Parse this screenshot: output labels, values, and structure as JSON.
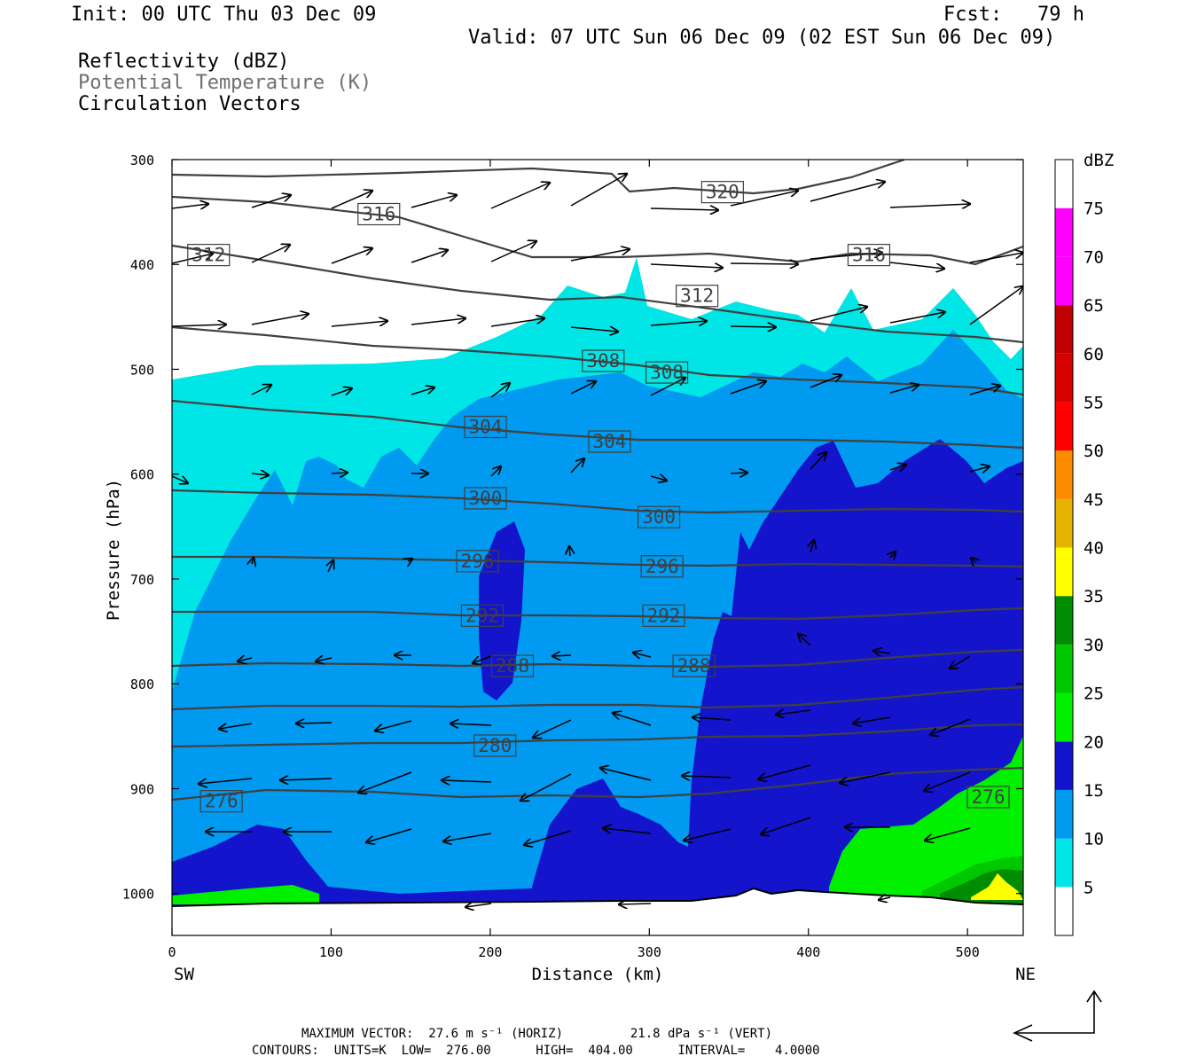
{
  "header": {
    "init": "Init: 00 UTC Thu 03 Dec 09",
    "fcst": "Fcst:   79 h",
    "valid": "Valid: 07 UTC Sun 06 Dec 09 (02 EST Sun 06 Dec 09)",
    "field1": "Reflectivity (dBZ)",
    "field2": "Potential Temperature (K)",
    "field3": "Circulation Vectors"
  },
  "footer": {
    "max_vector": "MAXIMUM VECTOR:  27.6 m s⁻¹ (HORIZ)         21.8 dPa s⁻¹ (VERT)",
    "contours": "CONTOURS:  UNITS=K  LOW=  276.00      HIGH=  404.00      INTERVAL=    4.0000"
  },
  "colors": {
    "c5": "#00e6e6",
    "c10": "#009af0",
    "c15": "#1414cc",
    "c20": "#00f000",
    "c25": "#00c800",
    "c30": "#008c00",
    "c35": "#ffff00",
    "c40": "#e6b400",
    "c45": "#ff8c00",
    "c50": "#ff0000",
    "c55": "#d60000",
    "c60": "#c00000",
    "c65": "#ff00ff",
    "c70": "#ff00ff",
    "c75": "#9a55cc",
    "contour": "#404040"
  },
  "chart_data": {
    "type": "cross-section",
    "xlabel": "Distance (km)",
    "ylabel": "Pressure (hPa)",
    "x_end_labels": [
      "SW",
      "NE"
    ],
    "xlim": [
      0,
      535
    ],
    "ylim": [
      1040,
      300
    ],
    "x_ticks": [
      0,
      100,
      200,
      300,
      400,
      500
    ],
    "y_ticks": [
      300,
      400,
      500,
      600,
      700,
      800,
      900,
      1000
    ],
    "colorbar": {
      "unit": "dBZ",
      "levels": [
        5,
        10,
        15,
        20,
        25,
        30,
        35,
        40,
        45,
        50,
        55,
        60,
        65,
        70,
        75
      ]
    },
    "theta_contour_labels": [
      {
        "value": "320",
        "x": 346,
        "p": 331
      },
      {
        "value": "316",
        "x": 130,
        "p": 352
      },
      {
        "value": "316",
        "x": 438,
        "p": 391
      },
      {
        "value": "312",
        "x": 23,
        "p": 391
      },
      {
        "value": "312",
        "x": 330,
        "p": 430
      },
      {
        "value": "308",
        "x": 271,
        "p": 492
      },
      {
        "value": "308",
        "x": 311,
        "p": 503
      },
      {
        "value": "304",
        "x": 197,
        "p": 555
      },
      {
        "value": "304",
        "x": 275,
        "p": 569
      },
      {
        "value": "300",
        "x": 197,
        "p": 623
      },
      {
        "value": "300",
        "x": 306,
        "p": 641
      },
      {
        "value": "296",
        "x": 192,
        "p": 683
      },
      {
        "value": "296",
        "x": 308,
        "p": 688
      },
      {
        "value": "292",
        "x": 195,
        "p": 735
      },
      {
        "value": "292",
        "x": 309,
        "p": 735
      },
      {
        "value": "288",
        "x": 214,
        "p": 783
      },
      {
        "value": "288",
        "x": 328,
        "p": 783
      },
      {
        "value": "280",
        "x": 203,
        "p": 859
      },
      {
        "value": "276",
        "x": 31,
        "p": 912
      },
      {
        "value": "276",
        "x": 513,
        "p": 908
      }
    ]
  }
}
